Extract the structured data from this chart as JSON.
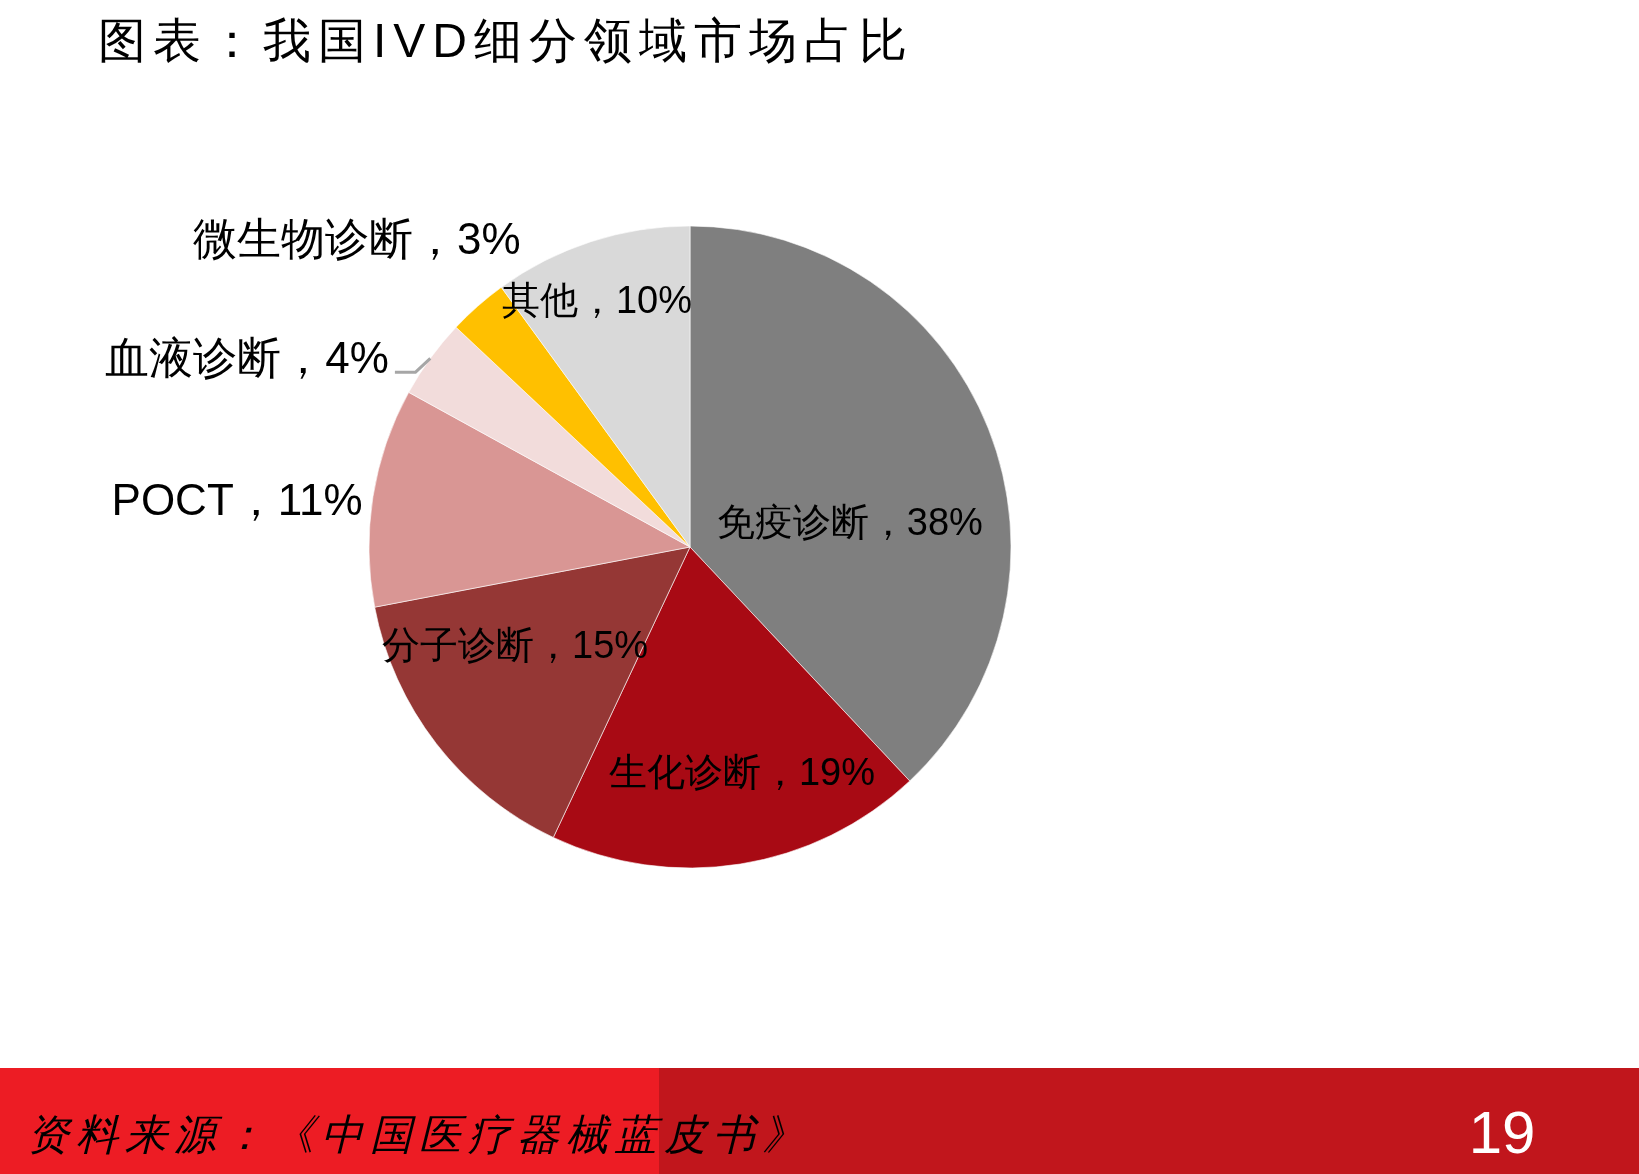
{
  "chart_data": {
    "type": "pie",
    "title": "图表：我国IVD细分领域市场占比",
    "categories": [
      "免疫诊断",
      "生化诊断",
      "分子诊断",
      "POCT",
      "血液诊断",
      "微生物诊断",
      "其他"
    ],
    "values": [
      38,
      19,
      15,
      11,
      4,
      3,
      10
    ],
    "value_labels": [
      "38%",
      "19%",
      "15%",
      "11%",
      "4%",
      "3%",
      "10%"
    ],
    "colors": [
      "#7f7f7f",
      "#a80a14",
      "#953735",
      "#d99694",
      "#f2dcdb",
      "#ffc000",
      "#d9d9d9"
    ],
    "annotations": [
      "资料来源：《中国医疗器械蓝皮书》",
      "19"
    ]
  }
}
